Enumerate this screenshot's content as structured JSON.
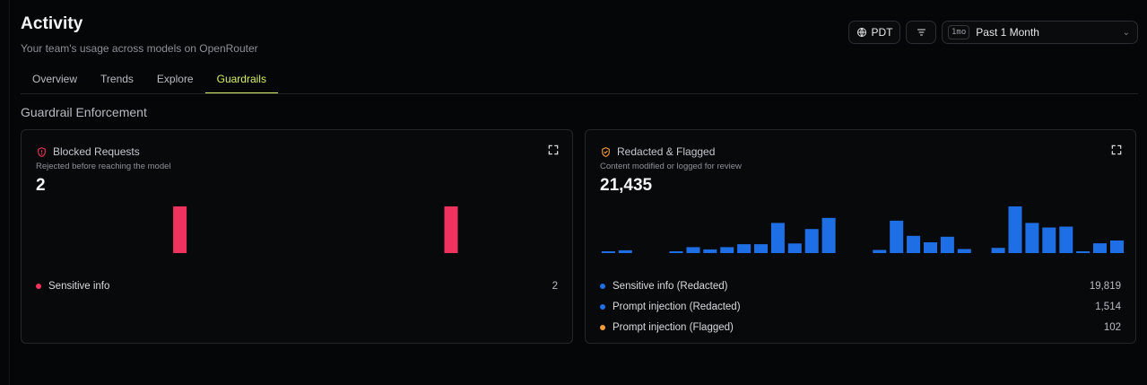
{
  "header": {
    "title": "Activity",
    "subtitle": "Your team's usage across models on OpenRouter"
  },
  "controls": {
    "timezone_label": "PDT",
    "range_badge": "1mo",
    "range_value": "Past 1 Month"
  },
  "tabs": [
    {
      "label": "Overview",
      "active": false
    },
    {
      "label": "Trends",
      "active": false
    },
    {
      "label": "Explore",
      "active": false
    },
    {
      "label": "Guardrails",
      "active": true
    }
  ],
  "section": {
    "title": "Guardrail Enforcement"
  },
  "cards": [
    {
      "title": "Blocked Requests",
      "description": "Rejected before reaching the model",
      "value": "2",
      "icon": "shield-icon",
      "icon_color": "#e8365a",
      "legend": [
        {
          "label": "Sensitive info",
          "value": "2",
          "color": "#f0325f"
        }
      ]
    },
    {
      "title": "Redacted & Flagged",
      "description": "Content modified or logged for review",
      "value": "21,435",
      "icon": "shield-check-icon",
      "icon_color": "#f59e3b",
      "legend": [
        {
          "label": "Sensitive info (Redacted)",
          "value": "19,819",
          "color": "#1e6fe6"
        },
        {
          "label": "Prompt injection (Redacted)",
          "value": "1,514",
          "color": "#1e6fe6"
        },
        {
          "label": "Prompt injection (Flagged)",
          "value": "102",
          "color": "#f59e3b"
        }
      ]
    }
  ],
  "chart_data": [
    {
      "type": "bar",
      "series": [
        {
          "color": "#f0325f",
          "values": [
            0,
            0,
            0,
            0,
            0,
            0,
            0,
            0,
            1,
            0,
            0,
            0,
            0,
            0,
            0,
            0,
            0,
            0,
            0,
            0,
            0,
            0,
            0,
            0,
            1,
            0,
            0,
            0,
            0,
            0,
            0
          ]
        }
      ],
      "ylim": [
        0,
        1
      ]
    },
    {
      "type": "bar",
      "series": [
        {
          "color": "#1e6fe6",
          "values": [
            8,
            15,
            0,
            0,
            8,
            32,
            20,
            32,
            48,
            48,
            163,
            52,
            130,
            190,
            0,
            0,
            17,
            175,
            93,
            58,
            88,
            22,
            0,
            28,
            252,
            163,
            138,
            143,
            3,
            53,
            68
          ]
        }
      ],
      "ylim": [
        0,
        252
      ]
    }
  ]
}
